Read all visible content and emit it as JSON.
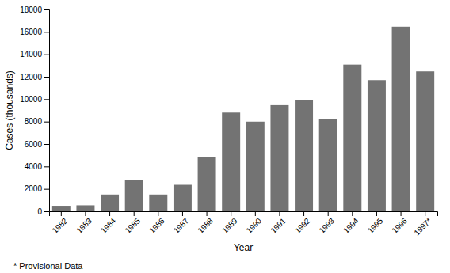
{
  "chart_data": {
    "type": "bar",
    "categories": [
      "1982",
      "1983",
      "1984",
      "1985",
      "1986",
      "1987",
      "1988",
      "1989",
      "1990",
      "1991",
      "1992",
      "1993",
      "1994",
      "1995",
      "1996",
      "1997*"
    ],
    "values": [
      491,
      533,
      1497,
      2821,
      1497,
      2363,
      4858,
      8803,
      7993,
      9465,
      9895,
      8257,
      13083,
      11700,
      16461,
      12478
    ],
    "color": "#737373",
    "x_label": "Year",
    "y_label": "Cases (thousands)",
    "footnote": "* Provisional Data",
    "ylim": [
      0,
      18000
    ],
    "yticks": [
      0,
      2000,
      4000,
      6000,
      8000,
      10000,
      12000,
      14000,
      16000,
      18000
    ],
    "grid": false
  }
}
